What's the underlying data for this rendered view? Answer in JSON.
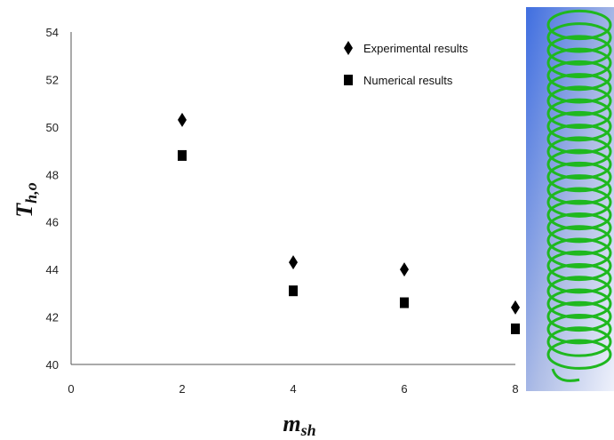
{
  "chart_data": {
    "type": "scatter",
    "title": "",
    "xlabel": {
      "main": "m",
      "sub": "sh"
    },
    "ylabel": {
      "main": "T",
      "sub": "h,o"
    },
    "xlim": [
      0,
      8
    ],
    "ylim": [
      40,
      54
    ],
    "xticks": [
      "0",
      "2",
      "4",
      "6",
      "8"
    ],
    "yticks": [
      "40",
      "42",
      "44",
      "46",
      "48",
      "50",
      "52",
      "54"
    ],
    "grid": false,
    "legend_position": "top-right",
    "series": [
      {
        "name": "Experimental results",
        "marker": "diamond",
        "color": "#000000",
        "points": [
          {
            "x": 2,
            "y": 50.3
          },
          {
            "x": 4,
            "y": 44.3
          },
          {
            "x": 6,
            "y": 44.0
          },
          {
            "x": 8,
            "y": 42.4
          }
        ]
      },
      {
        "name": "Numerical results",
        "marker": "square",
        "color": "#000000",
        "points": [
          {
            "x": 2,
            "y": 48.8
          },
          {
            "x": 4,
            "y": 43.1
          },
          {
            "x": 6,
            "y": 42.6
          },
          {
            "x": 8,
            "y": 41.5
          }
        ]
      }
    ]
  },
  "inset": {
    "icon": "helical-coil-icon",
    "coil_color": "#1fb81f",
    "background": "#8ea4dc"
  }
}
